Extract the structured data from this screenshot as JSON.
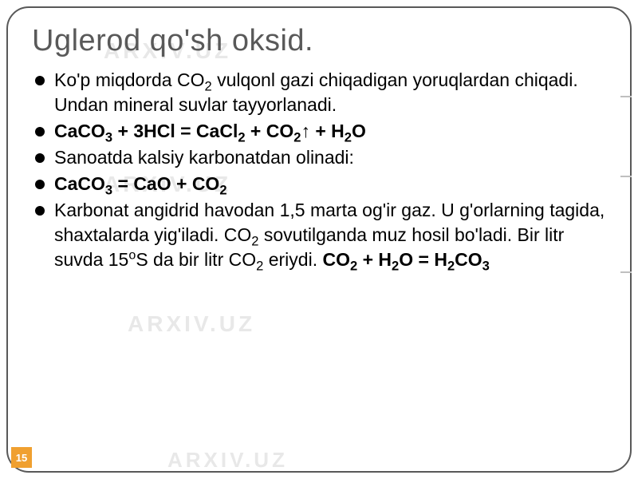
{
  "title": "Uglerod qo'sh oksid.",
  "watermark": "ARXIV.UZ",
  "page_number": "15",
  "bullets": {
    "b1_pre": "Ko'p miqdorda CO",
    "b1_post": " vulqonl gazi chiqadigan yoruqlardan chiqadi. Undan mineral suvlar tayyorlanadi.",
    "b2_pre": "CaCO",
    "b2_mid1": " + 3HCl = CaCl",
    "b2_mid2": " + CO",
    "b2_mid3": "↑ + H",
    "b2_end": "O",
    "b3": "Sanoatda kalsiy karbonatdan olinadi:",
    "b4_pre": "CaCO",
    "b4_mid": " = CaO + CO",
    "b5_p1": "Karbonat angidrid havodan 1,5 marta og'ir gaz. U g'orlarning tagida, shaxtalarda yig'iladi. CO",
    "b5_p2": " sovutilganda muz hosil bo'ladi. Bir  litr  suvda 15",
    "b5_p3": "S da bir litr  CO",
    "b5_p4": " eriydi. ",
    "b5_eq1": "CO",
    "b5_eq2": " + H",
    "b5_eq3": "O = H",
    "b5_eq4": "CO"
  },
  "subs": {
    "two": "2",
    "three": "3"
  },
  "sups": {
    "o": "o"
  },
  "colors": {
    "frame_border": "#595959",
    "title_color": "#595959",
    "text_color": "#000000",
    "watermark_color": "#e8e8e8",
    "page_badge_bg": "#f0a030",
    "page_badge_text": "#ffffff",
    "tick_color": "#bfbfbf"
  },
  "typography": {
    "title_fontsize": 38,
    "body_fontsize": 23,
    "watermark_fontsize": 28
  }
}
